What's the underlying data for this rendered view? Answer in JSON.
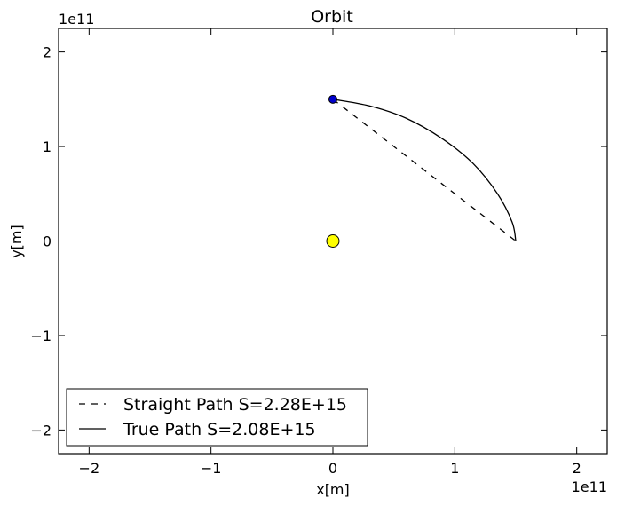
{
  "chart_data": {
    "type": "line",
    "title": "Orbit",
    "xlabel": "x[m]",
    "ylabel": "y[m]",
    "x_offset_label": "1e11",
    "y_offset_label": "1e11",
    "xlim": [
      -2.25,
      2.25
    ],
    "ylim": [
      -2.25,
      2.25
    ],
    "xticks": [
      -2,
      -1,
      0,
      1,
      2
    ],
    "yticks": [
      -2,
      -1,
      0,
      1,
      2
    ],
    "xtick_labels": [
      "−2",
      "−1",
      "0",
      "1",
      "2"
    ],
    "ytick_labels": [
      "−2",
      "−1",
      "0",
      "1",
      "2"
    ],
    "grid": false,
    "legend_position": "lower-left",
    "series": [
      {
        "name": "Straight Path S=2.28E+15",
        "style": "dashed",
        "color": "#000000",
        "x": [
          0.0,
          1.5
        ],
        "y": [
          1.5,
          0.0
        ]
      },
      {
        "name": "True Path S=2.08E+15",
        "style": "solid",
        "color": "#000000",
        "x": [
          0.0,
          0.3,
          0.6,
          0.9,
          1.15,
          1.35,
          1.47,
          1.5
        ],
        "y": [
          1.5,
          1.43,
          1.3,
          1.08,
          0.82,
          0.5,
          0.2,
          0.0
        ]
      }
    ],
    "markers": [
      {
        "name": "planet",
        "x": 0.0,
        "y": 1.5,
        "color": "#0000cc"
      },
      {
        "name": "sun",
        "x": 0.0,
        "y": 0.0,
        "color": "#ffff00"
      }
    ]
  }
}
